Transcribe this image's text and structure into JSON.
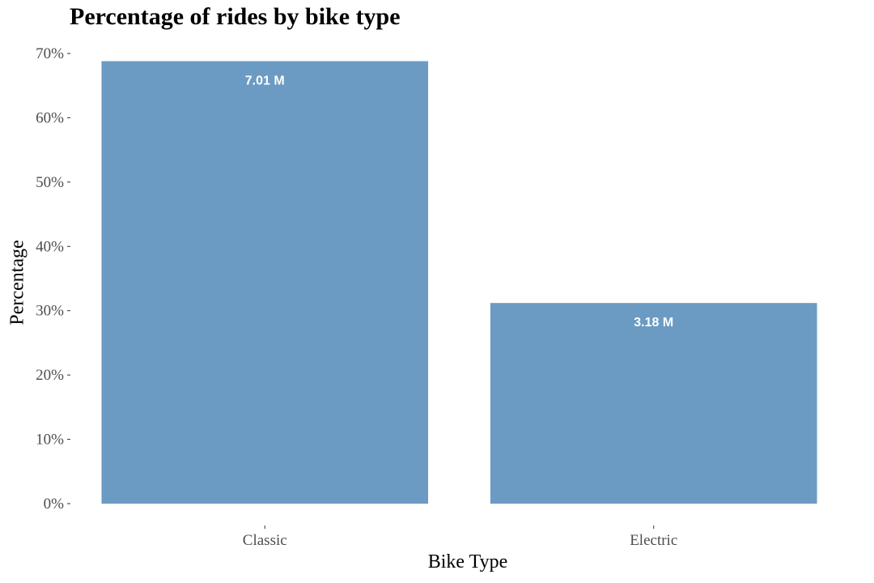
{
  "chart_data": {
    "type": "bar",
    "title": "Percentage of rides by bike type",
    "xlabel": "Bike Type",
    "ylabel": "Percentage",
    "categories": [
      "Classic",
      "Electric"
    ],
    "values": [
      68.8,
      31.2
    ],
    "value_unit": "%",
    "bar_labels": [
      "7.01 M",
      "3.18 M"
    ],
    "ylim": [
      0,
      70
    ],
    "y_ticks": [
      0,
      10,
      20,
      30,
      40,
      50,
      60,
      70
    ],
    "y_tick_labels": [
      "0%",
      "10%",
      "20%",
      "30%",
      "40%",
      "50%",
      "60%",
      "70%"
    ],
    "bar_color": "#6b9bc3",
    "grid": false,
    "legend": "none"
  }
}
